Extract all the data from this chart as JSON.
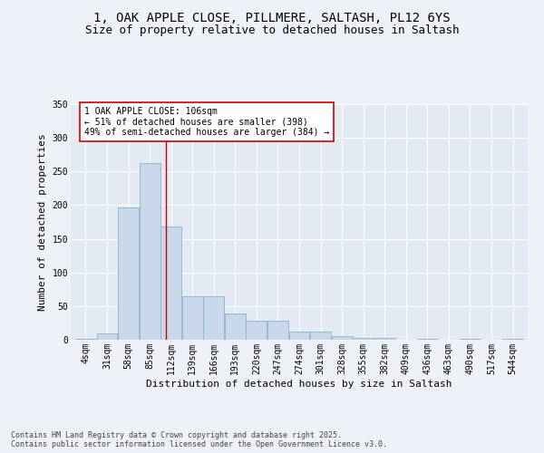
{
  "title_line1": "1, OAK APPLE CLOSE, PILLMERE, SALTASH, PL12 6YS",
  "title_line2": "Size of property relative to detached houses in Saltash",
  "xlabel": "Distribution of detached houses by size in Saltash",
  "ylabel": "Number of detached properties",
  "bar_color": "#c8d8ea",
  "bar_edge_color": "#8ab4cc",
  "vline_color": "#cc0000",
  "vline_x": 106,
  "annotation_text": "1 OAK APPLE CLOSE: 106sqm\n← 51% of detached houses are smaller (398)\n49% of semi-detached houses are larger (384) →",
  "footer_text": "Contains HM Land Registry data © Crown copyright and database right 2025.\nContains public sector information licensed under the Open Government Licence v3.0.",
  "bins": [
    4,
    31,
    58,
    85,
    112,
    139,
    166,
    193,
    220,
    247,
    274,
    301,
    328,
    355,
    382,
    409,
    436,
    463,
    490,
    517,
    544
  ],
  "values": [
    2,
    10,
    196,
    262,
    168,
    65,
    65,
    39,
    28,
    28,
    12,
    12,
    6,
    3,
    3,
    0,
    1,
    0,
    1,
    0,
    1
  ],
  "ylim": [
    0,
    350
  ],
  "yticks": [
    0,
    50,
    100,
    150,
    200,
    250,
    300,
    350
  ],
  "background_color": "#eef2f8",
  "plot_bg_color": "#e4eaf4",
  "grid_color": "#ffffff",
  "title_fontsize": 10,
  "subtitle_fontsize": 9,
  "axis_label_fontsize": 8,
  "tick_fontsize": 7,
  "annot_fontsize": 7,
  "footer_fontsize": 6
}
